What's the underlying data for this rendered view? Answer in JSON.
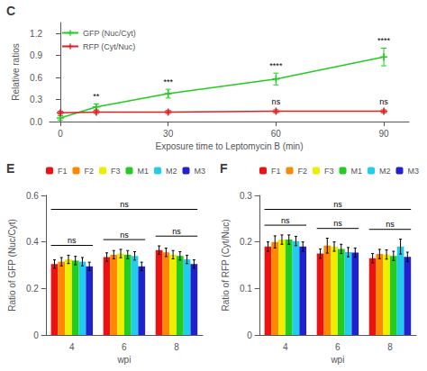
{
  "chart_data": [
    {
      "type": "line",
      "title": "C",
      "xlabel": "Exposure time to Leptomycin B (min)",
      "ylabel": "Relative ratios",
      "x": [
        0,
        10,
        30,
        60,
        90
      ],
      "series": [
        {
          "name": "GFP (Nuc/Cyt)",
          "color": "#22cc22",
          "marker": "plus",
          "values": [
            0.05,
            0.2,
            0.38,
            0.58,
            0.88
          ],
          "errors": [
            0.03,
            0.04,
            0.06,
            0.08,
            0.12
          ]
        },
        {
          "name": "RFP (Cyt/Nuc)",
          "color": "#dd2222",
          "marker": "plus",
          "values": [
            0.12,
            0.13,
            0.13,
            0.14,
            0.14
          ],
          "errors": [
            0.02,
            0.02,
            0.02,
            0.02,
            0.02
          ]
        }
      ],
      "xlim": [
        -3,
        97
      ],
      "xticks": [
        0,
        30,
        60,
        90
      ],
      "ylim": [
        0,
        1.35
      ],
      "yticks": [
        {
          "value": 0,
          "label": "0.0"
        },
        0.3,
        0.6,
        0.9,
        1.2
      ],
      "legend": "upper left",
      "grid": false,
      "annotations": [
        {
          "text": "**",
          "x": 10,
          "series": "GFP (Nuc/Cyt)"
        },
        {
          "text": "***",
          "x": 30,
          "series": "GFP (Nuc/Cyt)"
        },
        {
          "text": "****",
          "x": 60,
          "series": "GFP (Nuc/Cyt)"
        },
        {
          "text": "****",
          "x": 90,
          "series": "GFP (Nuc/Cyt)"
        },
        {
          "text": "ns",
          "x": 60,
          "series": "RFP (Cyt/Nuc)"
        },
        {
          "text": "ns",
          "x": 90,
          "series": "RFP (Cyt/Nuc)"
        }
      ]
    },
    {
      "type": "bar",
      "title": "E",
      "xlabel": "wpi",
      "ylabel": "Ratio of GFP (Nuc/Cyt)",
      "categories": [
        "4",
        "6",
        "8"
      ],
      "series": [
        {
          "name": "F1",
          "color": "#ee1111",
          "values": [
            0.305,
            0.335,
            0.365
          ],
          "errors": [
            0.018,
            0.018,
            0.018
          ]
        },
        {
          "name": "F2",
          "color": "#ff8800",
          "values": [
            0.315,
            0.345,
            0.355
          ],
          "errors": [
            0.018,
            0.018,
            0.018
          ]
        },
        {
          "name": "F3",
          "color": "#eeee00",
          "values": [
            0.325,
            0.35,
            0.345
          ],
          "errors": [
            0.018,
            0.018,
            0.018
          ]
        },
        {
          "name": "M1",
          "color": "#22cc22",
          "values": [
            0.32,
            0.345,
            0.34
          ],
          "errors": [
            0.018,
            0.018,
            0.018
          ]
        },
        {
          "name": "M2",
          "color": "#22ccee",
          "values": [
            0.315,
            0.34,
            0.325
          ],
          "errors": [
            0.018,
            0.018,
            0.018
          ]
        },
        {
          "name": "M3",
          "color": "#2222cc",
          "values": [
            0.295,
            0.295,
            0.305
          ],
          "errors": [
            0.018,
            0.018,
            0.018
          ]
        }
      ],
      "ylim": [
        0,
        0.6
      ],
      "yticks": [
        0,
        0.2,
        0.4,
        0.6
      ],
      "legend": "upper right",
      "grid": false,
      "annotations": [
        {
          "text": "ns",
          "categories": [
            "4"
          ]
        },
        {
          "text": "ns",
          "categories": [
            "6"
          ]
        },
        {
          "text": "ns",
          "categories": [
            "8"
          ]
        },
        {
          "text": "ns",
          "categories": [
            "4",
            "6",
            "8"
          ]
        }
      ]
    },
    {
      "type": "bar",
      "title": "F",
      "xlabel": "wpi",
      "ylabel": "Ratio of RFP (Cyt/Nuc)",
      "categories": [
        "4",
        "6",
        "8"
      ],
      "series": [
        {
          "name": "F1",
          "color": "#ee1111",
          "values": [
            0.19,
            0.175,
            0.165
          ],
          "errors": [
            0.01,
            0.01,
            0.01
          ]
        },
        {
          "name": "F2",
          "color": "#ff8800",
          "values": [
            0.2,
            0.192,
            0.174
          ],
          "errors": [
            0.013,
            0.016,
            0.01
          ]
        },
        {
          "name": "F3",
          "color": "#eeee00",
          "values": [
            0.205,
            0.19,
            0.173
          ],
          "errors": [
            0.01,
            0.01,
            0.01
          ]
        },
        {
          "name": "M1",
          "color": "#22cc22",
          "values": [
            0.205,
            0.185,
            0.17
          ],
          "errors": [
            0.01,
            0.01,
            0.01
          ]
        },
        {
          "name": "M2",
          "color": "#22ccee",
          "values": [
            0.202,
            0.178,
            0.19
          ],
          "errors": [
            0.01,
            0.01,
            0.016
          ]
        },
        {
          "name": "M3",
          "color": "#2222cc",
          "values": [
            0.19,
            0.177,
            0.168
          ],
          "errors": [
            0.01,
            0.01,
            0.01
          ]
        }
      ],
      "ylim": [
        0,
        0.3
      ],
      "yticks": [
        0,
        0.1,
        0.2,
        0.3
      ],
      "legend": "upper right",
      "grid": false,
      "annotations": [
        {
          "text": "ns",
          "categories": [
            "4"
          ]
        },
        {
          "text": "ns",
          "categories": [
            "6"
          ]
        },
        {
          "text": "ns",
          "categories": [
            "8"
          ]
        },
        {
          "text": "ns",
          "categories": [
            "4",
            "6",
            "8"
          ]
        }
      ]
    }
  ]
}
